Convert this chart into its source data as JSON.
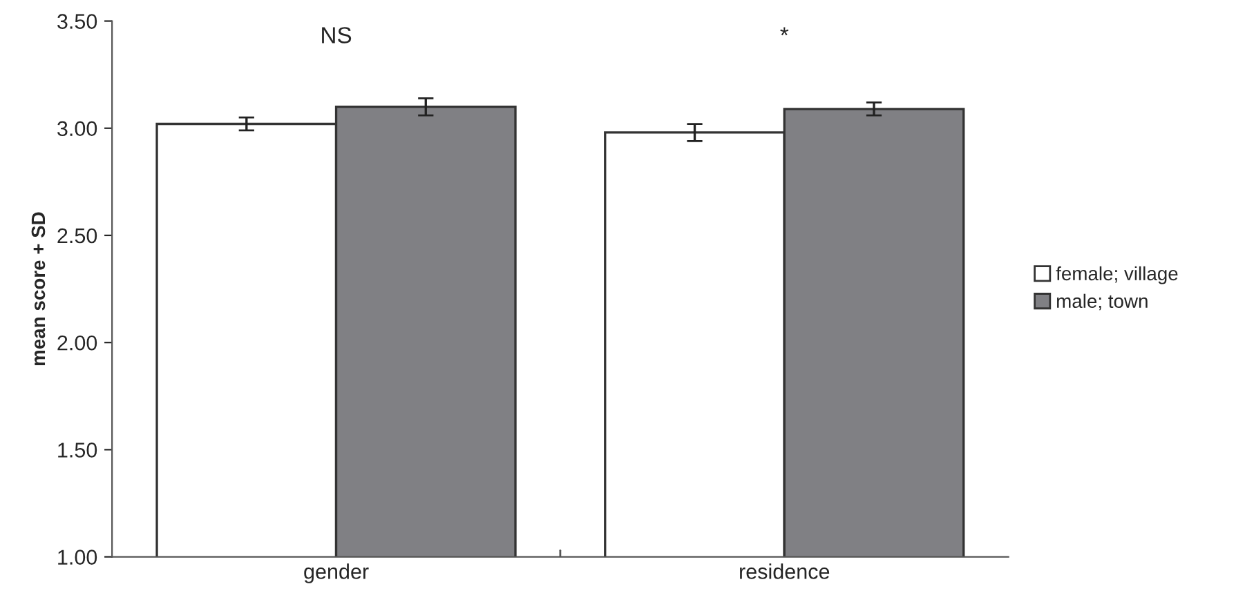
{
  "chart_data": {
    "type": "bar",
    "ylabel": "mean score + SD",
    "categories": [
      "gender",
      "residence"
    ],
    "series": [
      {
        "name": "female; village",
        "color": "#ffffff",
        "values": [
          3.02,
          2.98
        ],
        "errors": [
          0.03,
          0.04
        ]
      },
      {
        "name": "male; town",
        "color": "#808084",
        "values": [
          3.1,
          3.09
        ],
        "errors": [
          0.04,
          0.03
        ]
      }
    ],
    "ylim": [
      1.0,
      3.5
    ],
    "yticks": [
      {
        "value": 1.0,
        "label": "1.00"
      },
      {
        "value": 1.5,
        "label": "1.50"
      },
      {
        "value": 2.0,
        "label": "2.00"
      },
      {
        "value": 2.5,
        "label": "2.50"
      },
      {
        "value": 3.0,
        "label": "3.00"
      },
      {
        "value": 3.5,
        "label": "3.50"
      }
    ],
    "annotations": [
      "NS",
      "*"
    ],
    "grid": false,
    "legend": "right"
  }
}
